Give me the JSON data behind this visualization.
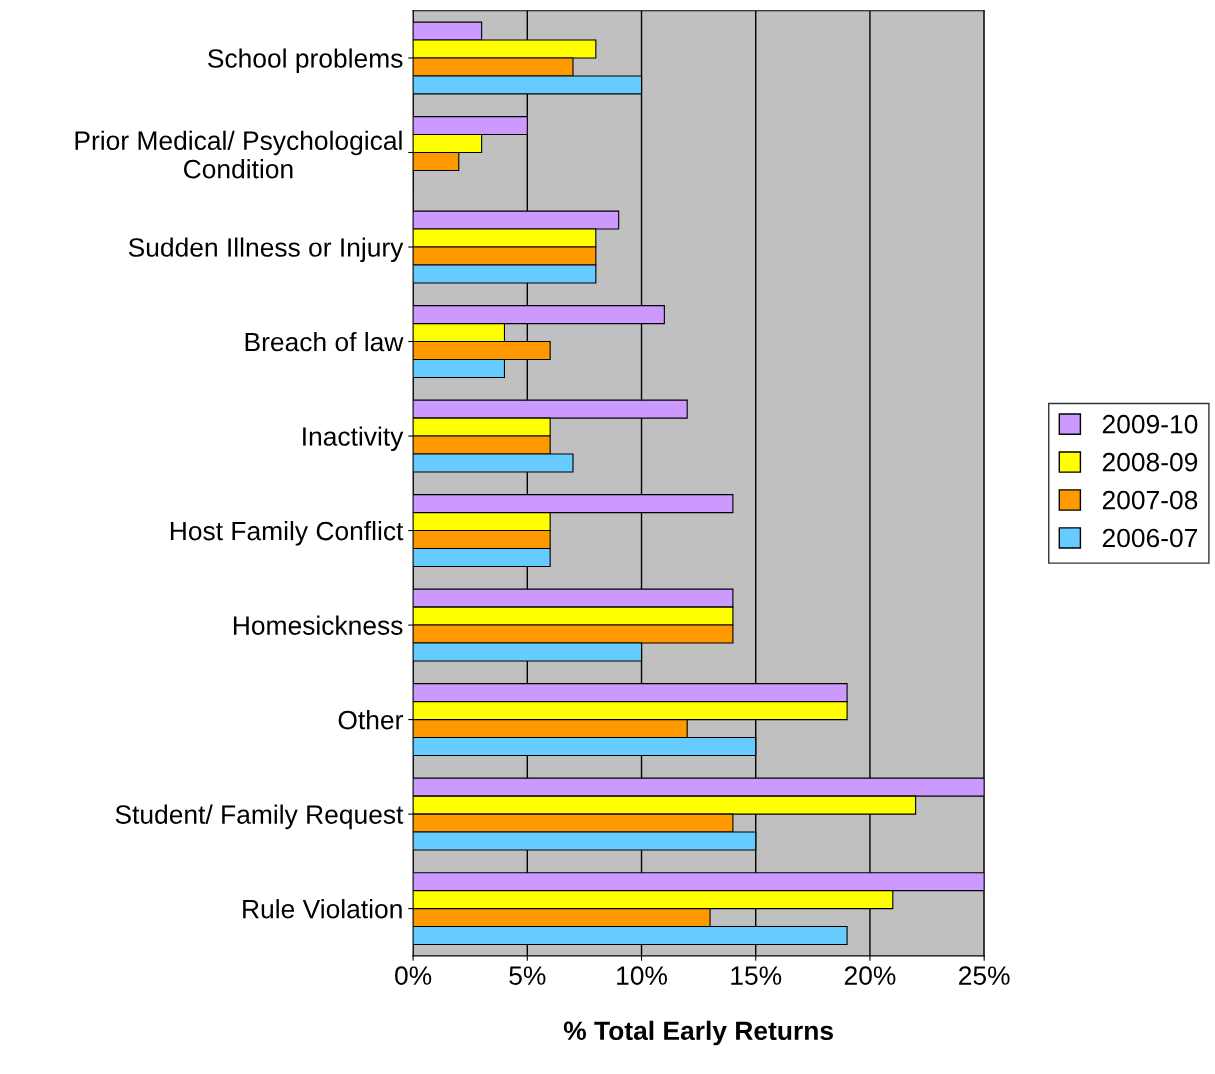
{
  "chart_data": {
    "type": "bar",
    "orientation": "horizontal",
    "xlabel": "% Total Early Returns",
    "categories": [
      "School problems",
      "Prior Medical/ Psychological Condition",
      "Sudden Illness or Injury",
      "Breach of law",
      "Inactivity",
      "Host Family Conflict",
      "Homesickness",
      "Other",
      "Student/ Family Request",
      "Rule Violation"
    ],
    "series": [
      {
        "name": "2009-10",
        "color": "#cc99ff",
        "values": [
          3,
          5,
          9,
          11,
          12,
          14,
          14,
          19,
          25,
          25
        ]
      },
      {
        "name": "2008-09",
        "color": "#ffff00",
        "values": [
          8,
          3,
          8,
          4,
          6,
          6,
          14,
          19,
          22,
          21
        ]
      },
      {
        "name": "2007-08",
        "color": "#ff9900",
        "values": [
          7,
          2,
          8,
          6,
          6,
          6,
          14,
          12,
          14,
          13
        ]
      },
      {
        "name": "2006-07",
        "color": "#66ccff",
        "values": [
          10,
          0,
          8,
          4,
          7,
          6,
          10,
          15,
          15,
          19
        ]
      }
    ],
    "xlim": [
      0,
      25
    ],
    "xticks": [
      {
        "value": 0,
        "label": "0%"
      },
      {
        "value": 5,
        "label": "5%"
      },
      {
        "value": 10,
        "label": "10%"
      },
      {
        "value": 15,
        "label": "15%"
      },
      {
        "value": 20,
        "label": "20%"
      },
      {
        "value": 25,
        "label": "25%"
      }
    ],
    "grid": "x",
    "legend": "right"
  }
}
